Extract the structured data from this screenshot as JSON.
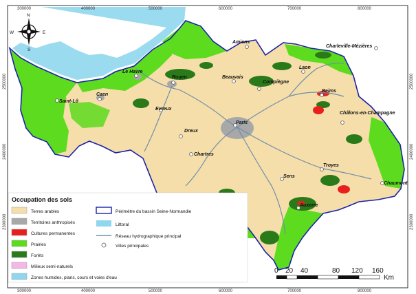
{
  "map": {
    "x_ticks": [
      "300000",
      "400000",
      "500000",
      "600000",
      "700000",
      "800000"
    ],
    "y_ticks": [
      "2500000",
      "2400000",
      "2300000"
    ],
    "cities": [
      {
        "name": "Amiens"
      },
      {
        "name": "Charleville-Mézières"
      },
      {
        "name": "Le Havre"
      },
      {
        "name": "Rouen"
      },
      {
        "name": "Beauvais"
      },
      {
        "name": "Laon"
      },
      {
        "name": "Caen"
      },
      {
        "name": "Compiègne"
      },
      {
        "name": "Reims"
      },
      {
        "name": "Saint-Lô"
      },
      {
        "name": "Evreux"
      },
      {
        "name": "Paris"
      },
      {
        "name": "Châlons-en-Champagne"
      },
      {
        "name": "Dreux"
      },
      {
        "name": "Chartres"
      },
      {
        "name": "Troyes"
      },
      {
        "name": "Sens"
      },
      {
        "name": "Chaumont"
      },
      {
        "name": "Auxerre"
      }
    ],
    "compass": {
      "n": "N",
      "s": "S",
      "e": "E",
      "w": "W"
    }
  },
  "legend": {
    "title": "Occupation des sols",
    "landcover": [
      {
        "label": "Terres arables",
        "color": "#f5deaa"
      },
      {
        "label": "Territoires anthropisés",
        "color": "#a8a8a8"
      },
      {
        "label": "Cultures permanentes",
        "color": "#e8201c"
      },
      {
        "label": "Prairies",
        "color": "#5ddb1e"
      },
      {
        "label": "Forêts",
        "color": "#2a7a1a"
      },
      {
        "label": "Milieux semi-naturels",
        "color": "#f4b8e4"
      },
      {
        "label": "Zones humides, plans, cours et voies d'eau",
        "color": "#8fd7ee"
      }
    ],
    "other": {
      "perimeter": "Périmètre du bassin Seine-Normandie",
      "perimeter_color": "#1a22a8",
      "coast": "Littoral",
      "coast_color": "#8fd7ee",
      "river": "Réseau hydrographique principal",
      "river_color": "#6f8fa8",
      "cities": "Villes principales"
    }
  },
  "scale": {
    "labels": [
      "0",
      "20",
      "40",
      "80",
      "120",
      "160"
    ],
    "unit": "Km"
  }
}
